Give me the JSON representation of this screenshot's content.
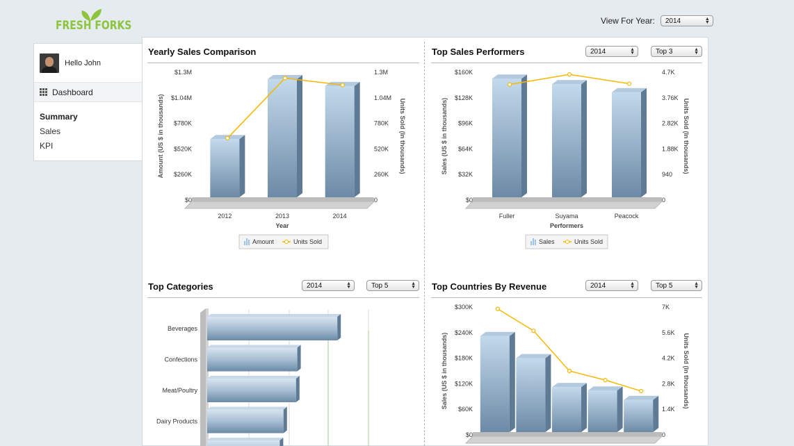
{
  "brand": {
    "name": "FRESH FORKS"
  },
  "header": {
    "view_label": "View For Year:",
    "year": "2014"
  },
  "user": {
    "greeting": "Hello John"
  },
  "sidebar": {
    "dashboard_label": "Dashboard",
    "items": [
      "Summary",
      "Sales",
      "KPI"
    ]
  },
  "panels": {
    "yearly": {
      "title": "Yearly Sales Comparison",
      "legend": [
        "Amount",
        "Units Sold"
      ]
    },
    "performers": {
      "title": "Top Sales Performers",
      "year": "2014",
      "top": "Top 3",
      "legend": [
        "Sales",
        "Units Sold"
      ]
    },
    "categories": {
      "title": "Top Categories",
      "year": "2014",
      "top": "Top 5"
    },
    "countries": {
      "title": "Top Countries By Revenue",
      "year": "2014",
      "top": "Top 5"
    }
  },
  "colors": {
    "bar_top": "#c3d9ec",
    "bar_bottom": "#6c8aa6",
    "line": "#f5b800",
    "accent": "#8dc43e"
  },
  "chart_data": [
    {
      "type": "bar",
      "title": "Yearly Sales Comparison",
      "categories": [
        "2012",
        "2013",
        "2014"
      ],
      "xlabel": "Year",
      "ylabel": "Amount (US $ in thousands)",
      "y2label": "Units Sold (In thousands)",
      "ylim": [
        0,
        1300000
      ],
      "yticks": [
        "$0",
        "$260K",
        "$520K",
        "$780K",
        "$1.04M",
        "$1.3M"
      ],
      "y2ticks": [
        "0",
        "260K",
        "520K",
        "780K",
        "1.04M",
        "1.3M"
      ],
      "series": [
        {
          "name": "Amount",
          "kind": "bar",
          "values": [
            620000,
            1230000,
            1160000
          ]
        },
        {
          "name": "Units Sold",
          "kind": "line",
          "values": [
            630000,
            1240000,
            1170000
          ]
        }
      ]
    },
    {
      "type": "bar",
      "title": "Top Sales Performers",
      "categories": [
        "Fuller",
        "Suyama",
        "Peacock"
      ],
      "xlabel": "Performers",
      "ylabel": "Sales (US $ in thousands)",
      "y2label": "Units Sold (In thousands)",
      "ylim": [
        0,
        160000
      ],
      "yticks": [
        "$0",
        "$32K",
        "$64K",
        "$96K",
        "$128K",
        "$160K"
      ],
      "y2ticks": [
        "0",
        "940",
        "1.88K",
        "2.82K",
        "3.76K",
        "4.7K"
      ],
      "series": [
        {
          "name": "Sales",
          "kind": "bar",
          "values": [
            152000,
            145000,
            135000
          ]
        },
        {
          "name": "Units Sold",
          "kind": "line",
          "values": [
            4250,
            4620,
            4280
          ]
        }
      ]
    },
    {
      "type": "bar",
      "title": "Top Categories",
      "orientation": "horizontal",
      "categories": [
        "Beverages",
        "Confections",
        "Meat/Poultry",
        "Dairy Products",
        ""
      ],
      "series": [
        {
          "name": "Sales",
          "values": [
            104000,
            72000,
            71000,
            61000,
            58000
          ]
        }
      ],
      "xlim": [
        0,
        130000
      ]
    },
    {
      "type": "bar",
      "title": "Top Countries By Revenue",
      "categories": [
        "",
        "",
        "",
        "",
        ""
      ],
      "ylabel": "Sales (US $ in thousands)",
      "y2label": "Units Sold (In thousands)",
      "ylim": [
        0,
        300000
      ],
      "yticks": [
        "$0",
        "$60K",
        "$120K",
        "$180K",
        "$240K",
        "$300K"
      ],
      "y2ticks": [
        "0",
        "1.4K",
        "2.8K",
        "4.2K",
        "5.6K",
        "7K"
      ],
      "series": [
        {
          "name": "Sales",
          "kind": "bar",
          "values": [
            232000,
            180000,
            112000,
            104000,
            82000
          ]
        },
        {
          "name": "Units Sold",
          "kind": "line",
          "values": [
            6900,
            5700,
            3500,
            3000,
            2400
          ]
        }
      ]
    }
  ]
}
